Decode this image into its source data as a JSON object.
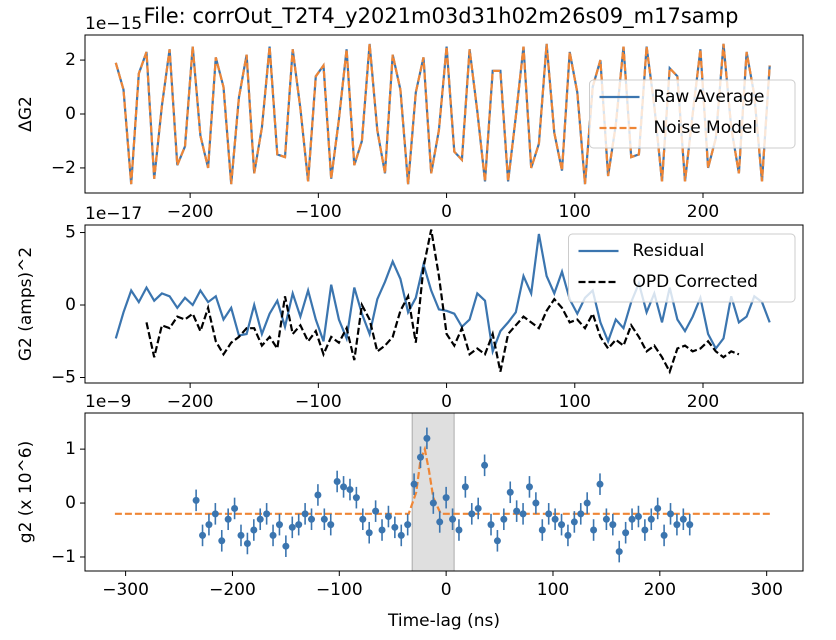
{
  "title": "File: corrOut_T2T4_y2021m03d31h02m26s09_m17samp",
  "chart_data": [
    {
      "type": "line",
      "ylabel": "ΔG2",
      "offset_text": "1e−15",
      "legend": "center right",
      "xlim": [
        -282,
        278
      ],
      "ylim": [
        -2.93,
        2.93
      ],
      "xticks": [
        {
          "value": -200,
          "label": "−200"
        },
        {
          "value": -100,
          "label": "−100"
        },
        0,
        100,
        200
      ],
      "yticks": [
        {
          "value": -2,
          "label": "−2"
        },
        0,
        2
      ],
      "series": [
        {
          "name": "Raw Average",
          "color": "#3b75af",
          "dash": "solid",
          "x": [
            -258,
            -252,
            -246,
            -240,
            -234,
            -228,
            -222,
            -216,
            -210,
            -204,
            -198,
            -192,
            -186,
            -180,
            -174,
            -168,
            -162,
            -156,
            -150,
            -144,
            -138,
            -132,
            -126,
            -120,
            -114,
            -108,
            -102,
            -96,
            -90,
            -84,
            -78,
            -72,
            -66,
            -60,
            -54,
            -48,
            -42,
            -36,
            -30,
            -24,
            -18,
            -12,
            -6,
            0,
            6,
            12,
            18,
            24,
            30,
            36,
            42,
            48,
            54,
            60,
            66,
            72,
            78,
            84,
            90,
            96,
            102,
            108,
            114,
            120,
            126,
            132,
            138,
            144,
            150,
            156,
            162,
            168,
            174,
            180,
            186,
            192,
            198,
            204,
            210,
            216,
            222,
            228,
            234,
            240,
            246,
            252
          ],
          "values": [
            1.9,
            0.9,
            -2.6,
            1.5,
            2.3,
            -2.4,
            0.3,
            2.4,
            -1.9,
            -1.2,
            2.5,
            -0.8,
            -2.0,
            2.1,
            1.0,
            -2.6,
            0.6,
            2.2,
            -2.2,
            -0.5,
            2.5,
            -1.5,
            -1.6,
            2.4,
            0.2,
            -2.5,
            1.4,
            1.8,
            -2.4,
            -0.2,
            2.4,
            -1.9,
            -1.0,
            2.6,
            -0.6,
            -2.2,
            2.2,
            0.9,
            -2.6,
            0.8,
            2.1,
            -2.2,
            -0.6,
            2.5,
            -1.4,
            -1.7,
            2.4,
            0.1,
            -2.5,
            1.6,
            1.6,
            -2.5,
            -0.1,
            2.5,
            -2.0,
            -1.1,
            2.6,
            -0.7,
            -2.1,
            2.3,
            0.8,
            -2.6,
            1.0,
            2.0,
            -2.3,
            -0.4,
            2.5,
            -1.6,
            -1.5,
            2.5,
            0.3,
            -2.5,
            1.7,
            1.4,
            -2.5,
            0.0,
            2.4,
            -2.0,
            -0.9,
            2.6,
            -0.5,
            -2.2,
            2.3,
            0.7,
            -2.5,
            1.8
          ]
        },
        {
          "name": "Noise Model",
          "color": "#ef8636",
          "dash": "dashed",
          "x": [
            -258,
            -252,
            -246,
            -240,
            -234,
            -228,
            -222,
            -216,
            -210,
            -204,
            -198,
            -192,
            -186,
            -180,
            -174,
            -168,
            -162,
            -156,
            -150,
            -144,
            -138,
            -132,
            -126,
            -120,
            -114,
            -108,
            -102,
            -96,
            -90,
            -84,
            -78,
            -72,
            -66,
            -60,
            -54,
            -48,
            -42,
            -36,
            -30,
            -24,
            -18,
            -12,
            -6,
            0,
            6,
            12,
            18,
            24,
            30,
            36,
            42,
            48,
            54,
            60,
            66,
            72,
            78,
            84,
            90,
            96,
            102,
            108,
            114,
            120,
            126,
            132,
            138,
            144,
            150,
            156,
            162,
            168,
            174,
            180,
            186,
            192,
            198,
            204,
            210,
            216,
            222,
            228,
            234,
            240,
            246,
            252
          ],
          "values": [
            1.9,
            0.9,
            -2.6,
            1.5,
            2.3,
            -2.4,
            0.3,
            2.4,
            -1.9,
            -1.2,
            2.5,
            -0.8,
            -2.0,
            2.1,
            1.0,
            -2.6,
            0.6,
            2.2,
            -2.2,
            -0.5,
            2.5,
            -1.5,
            -1.6,
            2.4,
            0.2,
            -2.5,
            1.4,
            1.8,
            -2.4,
            -0.2,
            2.4,
            -1.9,
            -1.0,
            2.6,
            -0.6,
            -2.2,
            2.2,
            0.9,
            -2.6,
            0.8,
            2.1,
            -2.2,
            -0.6,
            2.5,
            -1.4,
            -1.7,
            2.4,
            0.1,
            -2.5,
            1.6,
            1.6,
            -2.5,
            -0.1,
            2.5,
            -2.0,
            -1.1,
            2.6,
            -0.7,
            -2.1,
            2.3,
            0.8,
            -2.6,
            1.0,
            2.0,
            -2.3,
            -0.4,
            2.5,
            -1.6,
            -1.5,
            2.5,
            0.3,
            -2.5,
            1.7,
            1.4,
            -2.5,
            0.0,
            2.4,
            -2.0,
            -0.9,
            2.6,
            -0.5,
            -2.2,
            2.3,
            0.7,
            -2.5,
            1.8
          ]
        }
      ]
    },
    {
      "type": "line",
      "ylabel": "G2 (amps)^2",
      "offset_text": "1e−17",
      "legend": "upper right",
      "xlim": [
        -282,
        278
      ],
      "ylim": [
        -5.38,
        5.52
      ],
      "xticks": [
        {
          "value": -200,
          "label": "−200"
        },
        {
          "value": -100,
          "label": "−100"
        },
        0,
        100,
        200
      ],
      "yticks": [
        {
          "value": -5,
          "label": "−5"
        },
        0,
        5
      ],
      "series": [
        {
          "name": "Residual",
          "color": "#3b75af",
          "dash": "solid",
          "x": [
            -258,
            -252,
            -246,
            -240,
            -234,
            -228,
            -222,
            -216,
            -210,
            -204,
            -198,
            -192,
            -186,
            -180,
            -174,
            -168,
            -162,
            -156,
            -150,
            -144,
            -138,
            -132,
            -126,
            -120,
            -114,
            -108,
            -102,
            -96,
            -90,
            -84,
            -78,
            -72,
            -66,
            -60,
            -54,
            -48,
            -42,
            -36,
            -30,
            -24,
            -18,
            -12,
            -6,
            0,
            6,
            12,
            18,
            24,
            30,
            36,
            42,
            48,
            54,
            60,
            66,
            72,
            78,
            84,
            90,
            96,
            102,
            108,
            114,
            120,
            126,
            132,
            138,
            144,
            150,
            156,
            162,
            168,
            174,
            180,
            186,
            192,
            198,
            204,
            210,
            216,
            222,
            228,
            234,
            240,
            246,
            252
          ],
          "values": [
            -2.3,
            -0.5,
            1.0,
            0.2,
            1.2,
            0.3,
            0.8,
            0.6,
            -0.2,
            0.5,
            0.0,
            1.0,
            0.2,
            0.6,
            -1.0,
            -0.2,
            -2.1,
            -2.0,
            0.0,
            -2.0,
            -0.6,
            0.3,
            -1.5,
            0.8,
            -0.8,
            1.0,
            -1.0,
            -2.5,
            1.4,
            -1.0,
            -2.3,
            1.2,
            -0.6,
            -2.0,
            0.4,
            1.6,
            3.0,
            1.8,
            -0.5,
            0.5,
            2.8,
            1.0,
            -0.3,
            -0.4,
            -0.6,
            -1.5,
            -1.0,
            0.8,
            0.3,
            -3.2,
            -1.8,
            -1.2,
            -0.5,
            2.0,
            0.8,
            4.9,
            2.0,
            0.8,
            2.3,
            0.4,
            -0.6,
            0.5,
            1.0,
            -1.2,
            -2.5,
            -1.0,
            -1.6,
            0.2,
            1.5,
            -0.5,
            0.8,
            -1.2,
            1.2,
            -1.0,
            -1.8,
            -0.8,
            0.5,
            -2.0,
            -3.0,
            -2.3,
            0.6,
            -1.2,
            -0.8,
            0.6,
            0.2,
            -1.2
          ]
        },
        {
          "name": "OPD Corrected",
          "color": "#000000",
          "dash": "dashed",
          "x": [
            -234,
            -228,
            -222,
            -216,
            -210,
            -204,
            -198,
            -192,
            -186,
            -180,
            -174,
            -168,
            -162,
            -156,
            -150,
            -144,
            -138,
            -132,
            -126,
            -120,
            -114,
            -108,
            -102,
            -96,
            -90,
            -84,
            -78,
            -72,
            -66,
            -60,
            -54,
            -48,
            -42,
            -36,
            -30,
            -24,
            -18,
            -12,
            -6,
            0,
            6,
            12,
            18,
            24,
            30,
            36,
            42,
            48,
            54,
            60,
            66,
            72,
            78,
            84,
            90,
            96,
            102,
            108,
            114,
            120,
            126,
            132,
            138,
            144,
            150,
            156,
            162,
            168,
            174,
            180,
            186,
            192,
            198,
            204,
            210,
            216,
            222,
            228
          ],
          "values": [
            -1.2,
            -3.6,
            -1.4,
            -1.6,
            -0.8,
            -1.0,
            -0.6,
            -1.8,
            -0.2,
            -2.5,
            -3.4,
            -2.6,
            -2.2,
            -1.6,
            -1.6,
            -2.8,
            -2.2,
            -3.0,
            0.6,
            -2.0,
            -1.4,
            -2.5,
            -1.8,
            -3.4,
            -2.2,
            -2.6,
            -1.6,
            -3.8,
            0.0,
            -1.0,
            -3.2,
            -2.8,
            -2.2,
            -0.4,
            0.6,
            -2.6,
            2.6,
            5.2,
            2.0,
            -2.0,
            -2.8,
            -1.6,
            -3.4,
            -3.0,
            -3.4,
            -2.0,
            -4.6,
            -2.0,
            -1.4,
            -0.8,
            -1.2,
            -1.6,
            -0.4,
            0.4,
            -0.2,
            -1.2,
            -1.0,
            -1.6,
            -0.6,
            -2.2,
            -3.0,
            -2.4,
            -2.8,
            -1.4,
            -2.2,
            -3.2,
            -2.8,
            -3.6,
            -4.6,
            -3.0,
            -2.8,
            -3.2,
            -3.0,
            -2.5,
            -3.2,
            -3.6,
            -3.2,
            -3.4
          ]
        }
      ]
    },
    {
      "type": "scatter",
      "ylabel": "g2 (x 10^6)",
      "xlabel": "Time-lag (ns)",
      "offset_text": "1e−9",
      "xlim": [
        -338,
        334
      ],
      "ylim": [
        -1.26,
        1.67
      ],
      "xticks": [
        {
          "value": -300,
          "label": "−300"
        },
        {
          "value": -200,
          "label": "−200"
        },
        {
          "value": -100,
          "label": "−100"
        },
        0,
        100,
        200,
        300
      ],
      "yticks": [
        {
          "value": -1,
          "label": "−1"
        },
        0,
        1
      ],
      "span": [
        -31.8,
        7.5
      ],
      "color": "#3b75af",
      "yerr": 0.2,
      "x": [
        -234,
        -228,
        -222,
        -216,
        -210,
        -204,
        -198,
        -192,
        -186,
        -180,
        -174,
        -168,
        -162,
        -156,
        -150,
        -144,
        -138,
        -132,
        -126,
        -120,
        -114,
        -108,
        -102,
        -96,
        -90,
        -84,
        -78,
        -72,
        -66,
        -60,
        -54,
        -48,
        -42,
        -36,
        -30,
        -24,
        -18,
        -12,
        -6,
        0,
        6,
        12,
        18,
        24,
        30,
        36,
        42,
        48,
        54,
        60,
        66,
        72,
        78,
        84,
        90,
        96,
        102,
        108,
        114,
        120,
        126,
        132,
        138,
        144,
        150,
        156,
        162,
        168,
        174,
        180,
        186,
        192,
        198,
        204,
        210,
        216,
        222,
        228
      ],
      "values": [
        0.05,
        -0.6,
        -0.4,
        -0.2,
        -0.7,
        -0.3,
        -0.1,
        -0.6,
        -0.75,
        -0.5,
        -0.3,
        -0.2,
        -0.6,
        -0.4,
        -0.8,
        -0.45,
        -0.4,
        -0.2,
        -0.3,
        0.15,
        -0.3,
        -0.4,
        0.4,
        0.3,
        0.25,
        0.1,
        -0.3,
        -0.55,
        -0.15,
        -0.5,
        -0.25,
        -0.45,
        -0.6,
        -0.4,
        0.35,
        0.85,
        1.2,
        0.0,
        -0.35,
        0.1,
        -0.3,
        -0.5,
        0.3,
        -0.2,
        -0.1,
        0.7,
        -0.4,
        -0.7,
        -0.3,
        0.2,
        -0.15,
        -0.2,
        0.3,
        0.0,
        -0.5,
        -0.2,
        -0.3,
        -0.4,
        -0.6,
        -0.35,
        -0.2,
        0.0,
        -0.5,
        0.35,
        -0.3,
        -0.4,
        -0.9,
        -0.55,
        -0.3,
        -0.25,
        -0.5,
        -0.3,
        -0.1,
        -0.6,
        -0.2,
        -0.4,
        -0.3,
        -0.4
      ],
      "model": {
        "color": "#ef8636",
        "x": [
          -310,
          -35,
          -28,
          -24,
          -20,
          -16,
          -12,
          -5,
          305
        ],
        "values": [
          -0.2,
          -0.2,
          0.2,
          0.8,
          1.0,
          0.6,
          0.1,
          -0.2,
          -0.2
        ]
      }
    }
  ]
}
